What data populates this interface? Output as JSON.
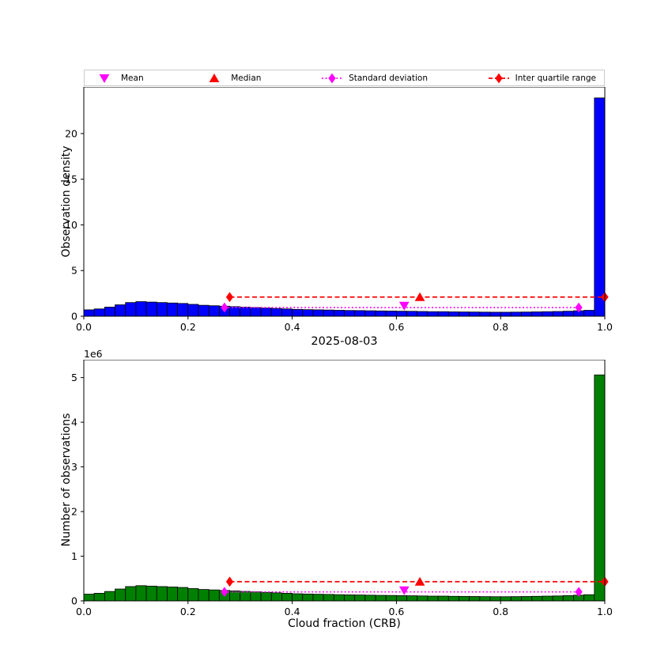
{
  "title": "2025-08-03",
  "legend": {
    "position": "top",
    "items": [
      {
        "label": "Mean",
        "marker": "triangle-down",
        "color": "#ff00ff",
        "line": "none"
      },
      {
        "label": "Median",
        "marker": "triangle-up",
        "color": "#ff0000",
        "line": "none"
      },
      {
        "label": "Standard deviation",
        "marker": "diamond",
        "color": "#ff00ff",
        "line": "dotted"
      },
      {
        "label": "Inter quartile range",
        "marker": "diamond",
        "color": "#ff0000",
        "line": "dashed"
      }
    ]
  },
  "chart_data": [
    {
      "type": "bar",
      "subtype": "histogram",
      "title": "",
      "ylabel": "Observation density",
      "xlabel": "",
      "bar_color": "#0000ff",
      "edge_color": "#000000",
      "grid": false,
      "bin_start": 0.0,
      "bin_width": 0.02,
      "xlim": [
        0.0,
        1.0
      ],
      "ylim": [
        0,
        25.1
      ],
      "xticks": [
        {
          "v": 0.0,
          "label": "0.0"
        },
        {
          "v": 0.2,
          "label": "0.2"
        },
        {
          "v": 0.4,
          "label": "0.4"
        },
        {
          "v": 0.6,
          "label": "0.6"
        },
        {
          "v": 0.8,
          "label": "0.8"
        },
        {
          "v": 1.0,
          "label": "1.0"
        }
      ],
      "yticks": [
        {
          "v": 0,
          "label": "0"
        },
        {
          "v": 5,
          "label": "5"
        },
        {
          "v": 10,
          "label": "10"
        },
        {
          "v": 15,
          "label": "15"
        },
        {
          "v": 20,
          "label": "20"
        }
      ],
      "values": [
        0.7,
        0.8,
        1.0,
        1.25,
        1.5,
        1.6,
        1.55,
        1.5,
        1.45,
        1.4,
        1.3,
        1.2,
        1.15,
        1.1,
        1.05,
        1.0,
        0.95,
        0.9,
        0.85,
        0.8,
        0.75,
        0.72,
        0.7,
        0.68,
        0.65,
        0.63,
        0.62,
        0.6,
        0.58,
        0.57,
        0.55,
        0.54,
        0.52,
        0.5,
        0.5,
        0.48,
        0.47,
        0.46,
        0.45,
        0.44,
        0.44,
        0.45,
        0.46,
        0.48,
        0.5,
        0.52,
        0.55,
        0.6,
        0.65,
        23.9
      ],
      "overlays": [
        {
          "name": "iqr-line",
          "type": "line",
          "x1": 0.28,
          "x2": 1.0,
          "y": 2.1,
          "color": "#ff0000",
          "dash": "6 3.5"
        },
        {
          "name": "std-line",
          "type": "line",
          "x1": 0.27,
          "x2": 0.95,
          "y": 0.95,
          "color": "#ff00ff",
          "dash": "1.8 2.8"
        }
      ],
      "markers": [
        {
          "name": "iqr-left-marker",
          "shape": "diamond",
          "x": 0.28,
          "y": 2.1,
          "color": "#ff0000"
        },
        {
          "name": "iqr-right-marker",
          "shape": "diamond",
          "x": 1.0,
          "y": 2.1,
          "color": "#ff0000"
        },
        {
          "name": "median-marker",
          "shape": "triangle-up",
          "x": 0.645,
          "y": 2.1,
          "color": "#ff0000"
        },
        {
          "name": "std-left-marker",
          "shape": "diamond",
          "x": 0.27,
          "y": 0.95,
          "color": "#ff00ff"
        },
        {
          "name": "std-right-marker",
          "shape": "diamond",
          "x": 0.95,
          "y": 0.95,
          "color": "#ff00ff"
        },
        {
          "name": "mean-marker",
          "shape": "triangle-down",
          "x": 0.615,
          "y": 1.15,
          "color": "#ff00ff"
        }
      ],
      "stats": {
        "mean": 0.615,
        "median": 0.645,
        "std_low": 0.27,
        "std_high": 0.95,
        "q1": 0.28,
        "q3": 1.0
      }
    },
    {
      "type": "bar",
      "subtype": "histogram",
      "title": "",
      "ylabel": "Number of observations",
      "xlabel": "Cloud fraction (CRB)",
      "offset_text": "1e6",
      "bar_color": "#008000",
      "edge_color": "#000000",
      "grid": false,
      "bin_start": 0.0,
      "bin_width": 0.02,
      "xlim": [
        0.0,
        1.0
      ],
      "ylim": [
        0,
        5.4
      ],
      "xticks": [
        {
          "v": 0.0,
          "label": "0.0"
        },
        {
          "v": 0.2,
          "label": "0.2"
        },
        {
          "v": 0.4,
          "label": "0.4"
        },
        {
          "v": 0.6,
          "label": "0.6"
        },
        {
          "v": 0.8,
          "label": "0.8"
        },
        {
          "v": 1.0,
          "label": "1.0"
        }
      ],
      "yticks": [
        {
          "v": 0,
          "label": "0"
        },
        {
          "v": 1,
          "label": "1"
        },
        {
          "v": 2,
          "label": "2"
        },
        {
          "v": 3,
          "label": "3"
        },
        {
          "v": 4,
          "label": "4"
        },
        {
          "v": 5,
          "label": "5"
        }
      ],
      "values": [
        0.15,
        0.17,
        0.21,
        0.265,
        0.32,
        0.34,
        0.33,
        0.32,
        0.31,
        0.3,
        0.275,
        0.255,
        0.245,
        0.233,
        0.223,
        0.212,
        0.201,
        0.191,
        0.18,
        0.17,
        0.159,
        0.153,
        0.148,
        0.144,
        0.138,
        0.134,
        0.131,
        0.127,
        0.123,
        0.121,
        0.117,
        0.114,
        0.11,
        0.106,
        0.106,
        0.102,
        0.1,
        0.098,
        0.095,
        0.093,
        0.093,
        0.095,
        0.098,
        0.102,
        0.106,
        0.11,
        0.117,
        0.127,
        0.138,
        5.06
      ],
      "overlays": [
        {
          "name": "iqr-line",
          "type": "line",
          "x1": 0.28,
          "x2": 1.0,
          "y": 0.43,
          "color": "#ff0000",
          "dash": "6 3.5"
        },
        {
          "name": "std-line",
          "type": "line",
          "x1": 0.27,
          "x2": 0.95,
          "y": 0.2,
          "color": "#ff00ff",
          "dash": "1.8 2.8"
        }
      ],
      "markers": [
        {
          "name": "iqr-left-marker",
          "shape": "diamond",
          "x": 0.28,
          "y": 0.43,
          "color": "#ff0000"
        },
        {
          "name": "iqr-right-marker",
          "shape": "diamond",
          "x": 1.0,
          "y": 0.43,
          "color": "#ff0000"
        },
        {
          "name": "median-marker",
          "shape": "triangle-up",
          "x": 0.645,
          "y": 0.43,
          "color": "#ff0000"
        },
        {
          "name": "std-left-marker",
          "shape": "diamond",
          "x": 0.27,
          "y": 0.2,
          "color": "#ff00ff"
        },
        {
          "name": "std-right-marker",
          "shape": "diamond",
          "x": 0.95,
          "y": 0.2,
          "color": "#ff00ff"
        },
        {
          "name": "mean-marker",
          "shape": "triangle-down",
          "x": 0.615,
          "y": 0.235,
          "color": "#ff00ff"
        }
      ],
      "stats": {
        "mean": 0.615,
        "median": 0.645,
        "std_low": 0.27,
        "std_high": 0.95,
        "q1": 0.28,
        "q3": 1.0
      }
    }
  ]
}
